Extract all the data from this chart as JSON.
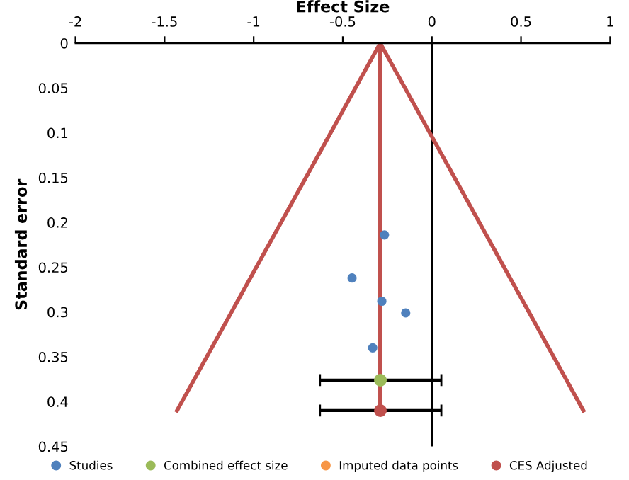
{
  "chart_data": {
    "type": "line",
    "xlabel": "Effect Size",
    "ylabel": "Standard error",
    "xlim": [
      -2,
      1
    ],
    "xticks": [
      -2,
      -1.5,
      -1,
      -0.5,
      0,
      0.5,
      1
    ],
    "ylim": [
      0.45,
      0
    ],
    "yticks": [
      0,
      0.05,
      0.1,
      0.15,
      0.2,
      0.25,
      0.3,
      0.35,
      0.4,
      0.45
    ],
    "grid": false,
    "legend": "bottom",
    "marker": "circle",
    "ref_lines": [
      {
        "axis": "x",
        "value": 0,
        "color": "#000000",
        "line_style": "solid"
      }
    ],
    "series": [
      {
        "color": "#c0504d",
        "marker": "none",
        "x": [
          -1.43,
          -0.29,
          0.85
        ],
        "values": [
          0.41,
          0,
          0.41
        ]
      },
      {
        "color": "#c0504d",
        "marker": "none",
        "x": [
          -0.29,
          -0.29
        ],
        "values": [
          0,
          0.41
        ]
      },
      {
        "name": "Studies",
        "type": "scatter",
        "color": "#4f81bd",
        "x": [
          -0.266,
          -0.448,
          -0.281,
          -0.147,
          -0.332
        ],
        "values": [
          0.214,
          0.262,
          0.288,
          0.301,
          0.34
        ]
      },
      {
        "name": "Combined effect size",
        "type": "scatter",
        "color": "#9bbb59",
        "x": [
          -0.289
        ],
        "values": [
          0.376
        ],
        "xerrors": [
          [
            -0.628,
            0.053
          ]
        ]
      },
      {
        "name": "Imputed data points",
        "type": "scatter",
        "color": "#f79646"
      },
      {
        "name": "CES Adjusted",
        "type": "scatter",
        "color": "#c0504d",
        "x": [
          -0.289
        ],
        "values": [
          0.41
        ],
        "xerrors": [
          [
            -0.628,
            0.053
          ]
        ]
      }
    ]
  }
}
